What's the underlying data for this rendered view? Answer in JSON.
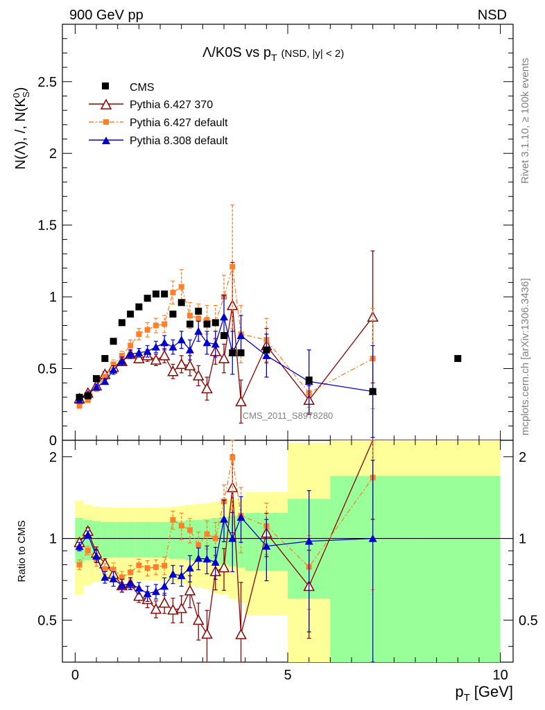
{
  "labels": {
    "top_left": "900 GeV pp",
    "top_right": "NSD",
    "title_main": "Λ/K0S vs p",
    "title_sub": "T",
    "title_sel": "(NSD, |y| < 2)",
    "ylabel_main": "N(Λ), /, N(K",
    "ylabel_sup": "0",
    "ylabel_sub": "S",
    "ylabel_close": ")",
    "ratio_ylabel": "Ratio to CMS",
    "xlabel_main": "p",
    "xlabel_sub": "T",
    "xlabel_unit": "[GeV]",
    "side_rivet": "Rivet 3.1.10, ≥ 100k events",
    "side_mcplots": "mcplots.cern.ch [arXiv:1306.3436]",
    "watermark": "CMS_2011_S8978280"
  },
  "chart_data": {
    "type": "scatter",
    "title": "Λ/K0S vs pT (NSD, |y| < 2)",
    "xlabel": "pT [GeV]",
    "ylabel": "N(Λ), /, N(K0S)",
    "xlim": [
      -0.3,
      10.3
    ],
    "ylim_main": [
      0,
      2.9
    ],
    "ylim_ratio": [
      0.35,
      2.3
    ],
    "xticks": [
      "0",
      "5",
      "10"
    ],
    "yticks_main": [
      "0",
      "0.5",
      "1",
      "1.5",
      "2",
      "2.5"
    ],
    "yticks_ratio": [
      "0.5",
      "1",
      "2"
    ],
    "legend": [
      "CMS",
      "Pythia 6.427 370",
      "Pythia 6.427 default",
      "Pythia 8.308 default"
    ],
    "colors": {
      "cms": "#000000",
      "p6_370": "#8b0000",
      "p6_def": "#ff7f2a",
      "p8": "#0000cc",
      "band_outer": "#ffff99",
      "band_inner": "#99ff99"
    },
    "cms": {
      "x": [
        0.1,
        0.3,
        0.5,
        0.7,
        0.9,
        1.1,
        1.3,
        1.5,
        1.7,
        1.9,
        2.1,
        2.3,
        2.5,
        2.7,
        2.9,
        3.1,
        3.3,
        3.5,
        3.7,
        3.9,
        4.5,
        5.5,
        7.0,
        9.0
      ],
      "y": [
        0.3,
        0.31,
        0.43,
        0.57,
        0.69,
        0.82,
        0.88,
        0.93,
        0.99,
        1.02,
        1.02,
        0.88,
        0.96,
        0.81,
        0.9,
        0.81,
        0.82,
        0.73,
        0.61,
        0.61,
        0.63,
        0.42,
        0.34,
        0.57
      ]
    },
    "ratio_band_bins": {
      "edges": [
        0,
        0.2,
        0.4,
        0.6,
        0.8,
        1.0,
        1.2,
        1.4,
        1.6,
        1.8,
        2.0,
        2.2,
        2.4,
        2.6,
        2.8,
        3.0,
        3.2,
        3.4,
        3.6,
        3.8,
        4.0,
        5.0,
        6.0,
        8.0,
        10.0
      ],
      "inner": [
        0.19,
        0.17,
        0.16,
        0.15,
        0.15,
        0.15,
        0.15,
        0.15,
        0.15,
        0.15,
        0.15,
        0.16,
        0.16,
        0.17,
        0.17,
        0.18,
        0.19,
        0.2,
        0.21,
        0.22,
        0.24,
        0.4,
        0.7,
        0.7
      ],
      "outer": [
        0.38,
        0.33,
        0.31,
        0.3,
        0.3,
        0.3,
        0.3,
        0.3,
        0.3,
        0.3,
        0.3,
        0.31,
        0.32,
        0.33,
        0.34,
        0.35,
        0.37,
        0.38,
        0.4,
        0.42,
        0.48,
        1.25,
        1.4,
        1.4
      ]
    },
    "series": [
      {
        "name": "Pythia 6.427 370",
        "marker": "open-triangle",
        "line": "solid",
        "x": [
          0.1,
          0.3,
          0.5,
          0.7,
          0.9,
          1.1,
          1.3,
          1.5,
          1.7,
          1.9,
          2.1,
          2.3,
          2.5,
          2.7,
          2.9,
          3.1,
          3.3,
          3.5,
          3.7,
          3.9,
          4.5,
          5.5,
          7.0
        ],
        "y": [
          0.29,
          0.33,
          0.38,
          0.46,
          0.51,
          0.55,
          0.6,
          0.57,
          0.59,
          0.56,
          0.59,
          0.48,
          0.53,
          0.52,
          0.45,
          0.36,
          0.62,
          0.57,
          0.94,
          0.27,
          0.66,
          0.28,
          0.86
        ],
        "err": [
          0.01,
          0.01,
          0.02,
          0.02,
          0.03,
          0.03,
          0.03,
          0.03,
          0.04,
          0.04,
          0.05,
          0.05,
          0.06,
          0.07,
          0.07,
          0.08,
          0.09,
          0.1,
          0.3,
          0.15,
          0.12,
          0.1,
          0.46
        ]
      },
      {
        "name": "Pythia 6.427 default",
        "marker": "square",
        "line": "dashdot",
        "x": [
          0.1,
          0.3,
          0.5,
          0.7,
          0.9,
          1.1,
          1.3,
          1.5,
          1.7,
          1.9,
          2.1,
          2.3,
          2.5,
          2.7,
          2.9,
          3.1,
          3.3,
          3.5,
          3.7,
          3.9,
          4.5,
          5.5,
          7.0
        ],
        "y": [
          0.24,
          0.28,
          0.36,
          0.44,
          0.53,
          0.59,
          0.66,
          0.74,
          0.77,
          0.8,
          0.81,
          1.03,
          1.07,
          0.87,
          0.85,
          0.84,
          0.82,
          1.0,
          1.21,
          0.74,
          0.7,
          0.33,
          0.57
        ],
        "err": [
          0.01,
          0.01,
          0.02,
          0.02,
          0.03,
          0.03,
          0.04,
          0.04,
          0.05,
          0.05,
          0.06,
          0.08,
          0.12,
          0.09,
          0.1,
          0.1,
          0.12,
          0.15,
          0.43,
          0.2,
          0.15,
          0.1,
          0.35
        ]
      },
      {
        "name": "Pythia 8.308 default",
        "marker": "triangle",
        "line": "solid",
        "x": [
          0.1,
          0.3,
          0.5,
          0.7,
          0.9,
          1.1,
          1.3,
          1.5,
          1.7,
          1.9,
          2.1,
          2.3,
          2.5,
          2.7,
          2.9,
          3.1,
          3.3,
          3.5,
          3.7,
          3.9,
          4.5,
          5.5,
          7.0
        ],
        "y": [
          0.28,
          0.32,
          0.37,
          0.41,
          0.49,
          0.55,
          0.6,
          0.61,
          0.62,
          0.65,
          0.68,
          0.65,
          0.7,
          0.63,
          0.76,
          0.68,
          0.67,
          0.86,
          0.61,
          0.73,
          0.59,
          0.41,
          0.34
        ],
        "err": [
          0.01,
          0.01,
          0.02,
          0.02,
          0.03,
          0.03,
          0.03,
          0.03,
          0.04,
          0.04,
          0.05,
          0.05,
          0.06,
          0.07,
          0.07,
          0.08,
          0.09,
          0.15,
          0.15,
          0.14,
          0.15,
          0.22,
          0.32
        ]
      }
    ]
  }
}
